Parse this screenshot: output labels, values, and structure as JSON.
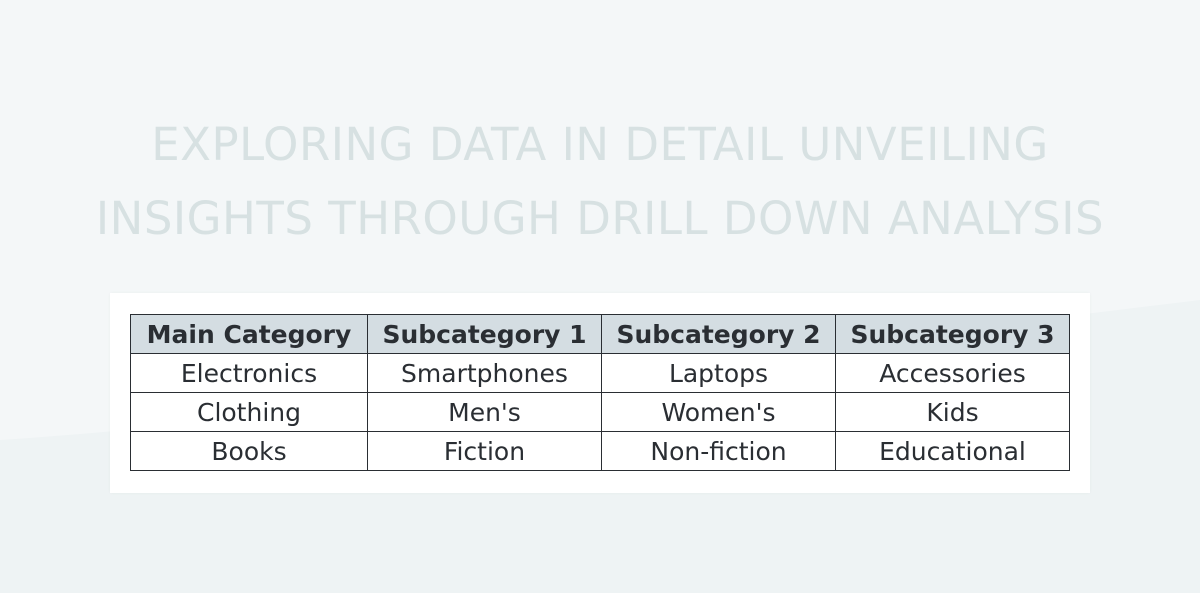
{
  "title": {
    "line1": "EXPLORING DATA IN DETAIL UNVEILING",
    "line2": "INSIGHTS THROUGH DRILL DOWN ANALYSIS"
  },
  "table": {
    "headers": [
      "Main Category",
      "Subcategory 1",
      "Subcategory 2",
      "Subcategory 3"
    ],
    "rows": [
      [
        "Electronics",
        "Smartphones",
        "Laptops",
        "Accessories"
      ],
      [
        "Clothing",
        "Men's",
        "Women's",
        "Kids"
      ],
      [
        "Books",
        "Fiction",
        "Non-fiction",
        "Educational"
      ]
    ]
  },
  "colors": {
    "background": "#f4f7f8",
    "title": "#d7e1e2",
    "header_fill": "#d4dde2",
    "border": "#2a2e33"
  }
}
